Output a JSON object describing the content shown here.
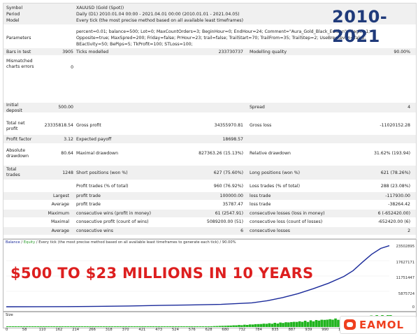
{
  "badge": "2010-2021",
  "headline": "$500 TO $23 MILLIONS IN 10 YEARS",
  "logo": "EAMOL",
  "report": {
    "symbol_label": "Symbol",
    "symbol_value": "XAUUSD (Gold (Spot))",
    "period_label": "Period",
    "period_value": "Daily (D1) 2010.01.04 00:00 - 2021.04.01 00:00 (2010.01.01 - 2021.04.05)",
    "model_label": "Model",
    "model_value": "Every tick (the most precise method based on all available least timeframes)",
    "params_label": "Parameters",
    "params_line1": "percent=0.01; balance=500; Lot=0; MaxCountOrders=3; BeginHour=0; EndHour=24; Comment=\"Aura_Gold_Black_Edition\"; Magic=1;",
    "params_line2": "Opposite=true; MaxSpred=200; Friday=false; PrHour=23; trail=false; TrailStart=70; TrailFrom=35; TrailStep=2; UseBreckeven=false;",
    "params_line3": "BEactivity=50; BePips=5; TkProfit=100; STLoss=100;",
    "bars_label": "Bars in test",
    "bars_value": "3905",
    "ticks_label": "Ticks modelled",
    "ticks_value": "233730737",
    "quality_label": "Modelling quality",
    "quality_value": "90.00%",
    "mismatch_label": "Mismatched charts errors",
    "mismatch_value": "0",
    "deposit_label": "Initial deposit",
    "deposit_value": "500.00",
    "spread_label": "Spread",
    "spread_value": "4",
    "netprofit_label": "Total net profit",
    "netprofit_value": "23335818.54",
    "grossprofit_label": "Gross profit",
    "grossprofit_value": "34355970.81",
    "grossloss_label": "Gross loss",
    "grossloss_value": "-11020152.28",
    "pf_label": "Profit factor",
    "pf_value": "3.12",
    "payoff_label": "Expected payoff",
    "payoff_value": "18698.57",
    "absdd_label": "Absolute drawdown",
    "absdd_value": "80.64",
    "maxdd_label": "Maximal drawdown",
    "maxdd_value": "827363.26 (15.13%)",
    "reldd_label": "Relative drawdown",
    "reldd_value": "31.62% (193.94)",
    "trades_label": "Total trades",
    "trades_value": "1248",
    "short_label": "Short positions (won %)",
    "short_value": "627 (75.60%)",
    "long_label": "Long positions (won %)",
    "long_value": "621 (78.26%)",
    "pt_label": "Profit trades (% of total)",
    "pt_value": "960 (76.92%)",
    "lt_label": "Loss trades (% of total)",
    "lt_value": "288 (23.08%)",
    "largest_label": "Largest",
    "lp_label": "profit trade",
    "lp_value": "100000.00",
    "ll_label": "loss trade",
    "ll_value": "-117930.00",
    "average_label": "Average",
    "ap_label": "profit trade",
    "ap_value": "35787.47",
    "al_label": "loss trade",
    "al_value": "-38264.42",
    "maximum_label": "Maximum",
    "mcw_label": "consecutive wins (profit in money)",
    "mcw_value": "61 (2547.91)",
    "mcl_label": "consecutive losses (loss in money)",
    "mcl_value": "6 (-652420.00)",
    "maximal_label": "Maximal",
    "mcp_label": "consecutive profit (count of wins)",
    "mcp_value": "5089200.00 (51)",
    "mcloss_label": "consecutive loss (count of losses)",
    "mcloss_value": "-652420.00 (6)",
    "average2_label": "Average",
    "acw_label": "consecutive wins",
    "acw_value": "6",
    "acl_label": "consecutive losses",
    "acl_value": "2"
  },
  "chart": {
    "header_balance": "Balance",
    "header_sep": " / ",
    "header_equity": "Equity",
    "header_rest": " / Every tick (the most precise method based on all available least timeframes to generate each tick) / 90.00%",
    "y_ticks": [
      "23502895",
      "17627171",
      "11751447",
      "5875724",
      "0"
    ],
    "size_label": "Size",
    "x_ticks": [
      "0",
      "58",
      "110",
      "162",
      "214",
      "266",
      "318",
      "370",
      "421",
      "473",
      "524",
      "576",
      "628",
      "680",
      "732",
      "784",
      "835",
      "887",
      "939",
      "990",
      "1042",
      "1096",
      "1150"
    ]
  },
  "chart_data": {
    "type": "line",
    "ylim": [
      0,
      23502895
    ],
    "x": [
      0,
      100,
      200,
      300,
      400,
      500,
      600,
      700,
      800,
      850,
      900,
      950,
      1000,
      1050,
      1100,
      1130,
      1160,
      1190,
      1220,
      1248
    ],
    "series": [
      {
        "name": "Balance",
        "color": "#1a2a9a",
        "values": [
          500,
          20000,
          60000,
          150000,
          300000,
          500000,
          700000,
          900000,
          1500000,
          2300000,
          3500000,
          5000000,
          6900000,
          9000000,
          11600000,
          13800000,
          17000000,
          20000000,
          22300000,
          23335818
        ]
      }
    ],
    "size_fill_color": "#21b41f"
  }
}
